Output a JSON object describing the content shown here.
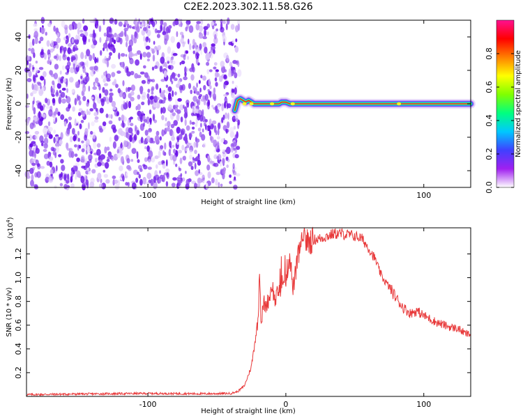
{
  "figure": {
    "title": "C2E2.2023.302.11.58.G26"
  },
  "chart_data": [
    {
      "type": "heatmap",
      "title": "C2E2.2023.302.11.58.G26",
      "xlabel": "Height of straight line (km)",
      "ylabel": "Frequency (Hz)",
      "xlim": [
        -188,
        134
      ],
      "ylim": [
        -50,
        50
      ],
      "x_ticks": [
        -100,
        0,
        100
      ],
      "x_tick_labels": [
        "-100",
        "",
        "100"
      ],
      "y_ticks": [
        -40,
        -20,
        0,
        20,
        40
      ],
      "y_tick_labels": [
        "-40",
        "-20",
        "0",
        "20",
        "40"
      ],
      "noise_region_x": [
        -188,
        -35
      ],
      "signal_track": {
        "x": [
          -37,
          -35,
          -33,
          -31,
          -29,
          -27,
          -25,
          -23,
          -20,
          -15,
          -10,
          -5,
          -3,
          0,
          3,
          5,
          10,
          20,
          40,
          60,
          80,
          84,
          90,
          110,
          134
        ],
        "y": [
          -4,
          2,
          3,
          2,
          1,
          2,
          1,
          0,
          0,
          0,
          0,
          0,
          1,
          1,
          0,
          0,
          0,
          0,
          0,
          0,
          0,
          0,
          0,
          0,
          0
        ]
      },
      "grid": false,
      "colorbar": {
        "label": "Normalized spectral amplitude",
        "range": [
          0,
          1
        ],
        "ticks": [
          0.0,
          0.2,
          0.4,
          0.6,
          0.8
        ],
        "tick_labels": [
          "0.0",
          "0.2",
          "0.4",
          "0.6",
          "0.8"
        ],
        "colors": [
          "#ffffff",
          "#a020f0",
          "#4040ff",
          "#00c8ff",
          "#00ff80",
          "#80ff00",
          "#ffff00",
          "#ff8000",
          "#ff0000",
          "#ff1090"
        ]
      }
    },
    {
      "type": "line",
      "xlabel": "Height of straight line (km)",
      "ylabel": "SNR (10 * v/v)",
      "y_multiplier": "(x10",
      "y_multiplier_exp": "4",
      "y_multiplier_close": ")",
      "xlim": [
        -188,
        134
      ],
      "ylim": [
        0,
        14200
      ],
      "x_ticks": [
        -100,
        0,
        100
      ],
      "x_tick_labels": [
        "-100",
        "0",
        "100"
      ],
      "y_ticks": [
        2000,
        4000,
        6000,
        8000,
        10000,
        12000
      ],
      "y_tick_labels": [
        "0.2",
        "0.4",
        "0.6",
        "0.8",
        "1.0",
        "1.2"
      ],
      "grid": false,
      "series": [
        {
          "color": "#e8393a",
          "x": [
            -188,
            -150,
            -100,
            -60,
            -40,
            -35,
            -30,
            -25,
            -22,
            -20,
            -19,
            -18,
            -17,
            -16,
            -15,
            -12,
            -10,
            -8,
            -5,
            0,
            3,
            5,
            8,
            10,
            15,
            20,
            25,
            30,
            35,
            40,
            45,
            50,
            55,
            60,
            65,
            68,
            70,
            75,
            80,
            85,
            90,
            95,
            100,
            105,
            110,
            115,
            120,
            125,
            130,
            134
          ],
          "y": [
            150,
            200,
            250,
            220,
            250,
            400,
            900,
            2500,
            5000,
            6500,
            11500,
            6000,
            7000,
            8000,
            7500,
            8300,
            9500,
            8000,
            9000,
            10000,
            12000,
            9000,
            11000,
            12500,
            13000,
            13200,
            13300,
            13500,
            13700,
            13700,
            13600,
            13500,
            13300,
            12500,
            11500,
            10500,
            10000,
            9200,
            8300,
            7500,
            7000,
            7200,
            6800,
            6500,
            6200,
            6000,
            5800,
            5700,
            5300,
            5200
          ]
        }
      ]
    }
  ]
}
